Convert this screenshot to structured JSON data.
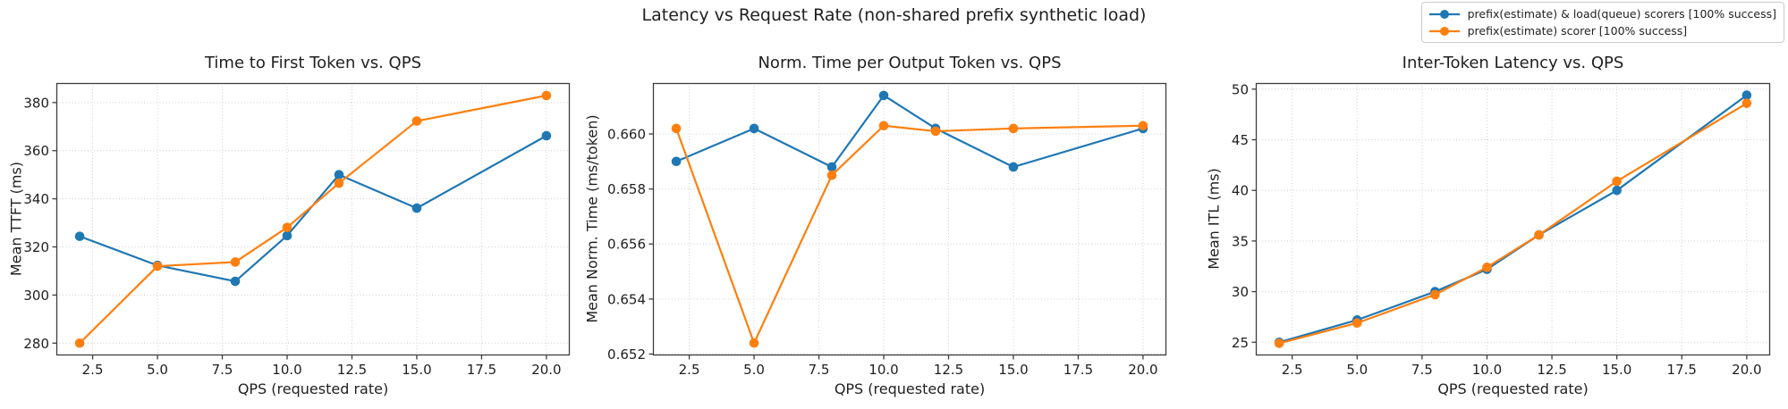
{
  "suptitle": "Latency vs Request Rate (non-shared prefix synthetic load)",
  "colors": {
    "series_blue": "#1f77b4",
    "series_orange": "#ff7f0e",
    "grid": "#cfcfcf",
    "spine": "#3d3d3d",
    "text": "#1f1f1f",
    "legend_border": "#cccccc"
  },
  "legend": {
    "position": "upper-right",
    "entries": [
      {
        "label": "prefix(estimate) & load(queue) scorers [100% success]",
        "color": "#1f77b4"
      },
      {
        "label": "prefix(estimate) scorer [100% success]",
        "color": "#ff7f0e"
      }
    ]
  },
  "chart_data": [
    {
      "type": "line",
      "title": "Time to First Token vs. QPS",
      "xlabel": "QPS (requested rate)",
      "ylabel": "Mean TTFT (ms)",
      "grid": true,
      "x": [
        2,
        5,
        8,
        10,
        12,
        15,
        20
      ],
      "series": [
        {
          "name": "prefix(estimate) & load(queue) scorers [100% success]",
          "color": "#1f77b4",
          "values": [
            324.4,
            312.3,
            305.7,
            324.7,
            350.0,
            336.1,
            366.2
          ]
        },
        {
          "name": "prefix(estimate) scorer [100% success]",
          "color": "#ff7f0e",
          "values": [
            280.0,
            312.0,
            313.7,
            328.1,
            346.5,
            372.3,
            382.9
          ]
        }
      ],
      "xlim": [
        1.1,
        20.9
      ],
      "ylim": [
        274.9,
        388.1
      ],
      "xticks": [
        2.5,
        5.0,
        7.5,
        10.0,
        12.5,
        15.0,
        17.5,
        20.0
      ],
      "xtick_labels": [
        "2.5",
        "5.0",
        "7.5",
        "10.0",
        "12.5",
        "15.0",
        "17.5",
        "20.0"
      ],
      "yticks": [
        280,
        300,
        320,
        340,
        360,
        380
      ],
      "ytick_labels": [
        "280",
        "300",
        "320",
        "340",
        "360",
        "380"
      ]
    },
    {
      "type": "line",
      "title": "Norm. Time per Output Token vs. QPS",
      "xlabel": "QPS (requested rate)",
      "ylabel": "Mean Norm. Time (ms/token)",
      "grid": true,
      "x": [
        2,
        5,
        8,
        10,
        12,
        15,
        20
      ],
      "series": [
        {
          "name": "prefix(estimate) & load(queue) scorers [100% success]",
          "color": "#1f77b4",
          "values": [
            0.659,
            0.6602,
            0.6588,
            0.6614,
            0.6602,
            0.6588,
            0.6602
          ]
        },
        {
          "name": "prefix(estimate) scorer [100% success]",
          "color": "#ff7f0e",
          "values": [
            0.6602,
            0.6524,
            0.6585,
            0.6603,
            0.6601,
            0.6602,
            0.6603
          ]
        }
      ],
      "xlim": [
        1.1,
        20.9
      ],
      "ylim": [
        0.65195,
        0.66185
      ],
      "xticks": [
        2.5,
        5.0,
        7.5,
        10.0,
        12.5,
        15.0,
        17.5,
        20.0
      ],
      "xtick_labels": [
        "2.5",
        "5.0",
        "7.5",
        "10.0",
        "12.5",
        "15.0",
        "17.5",
        "20.0"
      ],
      "yticks": [
        0.652,
        0.654,
        0.656,
        0.658,
        0.66
      ],
      "ytick_labels": [
        "0.652",
        "0.654",
        "0.656",
        "0.658",
        "0.660"
      ]
    },
    {
      "type": "line",
      "title": "Inter-Token Latency vs. QPS",
      "xlabel": "QPS (requested rate)",
      "ylabel": "Mean ITL (ms)",
      "grid": true,
      "x": [
        2,
        5,
        8,
        10,
        12,
        15,
        20
      ],
      "series": [
        {
          "name": "prefix(estimate) & load(queue) scorers [100% success]",
          "color": "#1f77b4",
          "values": [
            25.0,
            27.2,
            30.0,
            32.2,
            35.6,
            40.0,
            49.4
          ]
        },
        {
          "name": "prefix(estimate) scorer [100% success]",
          "color": "#ff7f0e",
          "values": [
            24.9,
            26.9,
            29.7,
            32.4,
            35.6,
            40.9,
            48.6
          ]
        }
      ],
      "xlim": [
        1.1,
        20.9
      ],
      "ylim": [
        23.7,
        50.6
      ],
      "xticks": [
        2.5,
        5.0,
        7.5,
        10.0,
        12.5,
        15.0,
        17.5,
        20.0
      ],
      "xtick_labels": [
        "2.5",
        "5.0",
        "7.5",
        "10.0",
        "12.5",
        "15.0",
        "17.5",
        "20.0"
      ],
      "yticks": [
        25,
        30,
        35,
        40,
        45,
        50
      ],
      "ytick_labels": [
        "25",
        "30",
        "35",
        "40",
        "45",
        "50"
      ]
    }
  ]
}
